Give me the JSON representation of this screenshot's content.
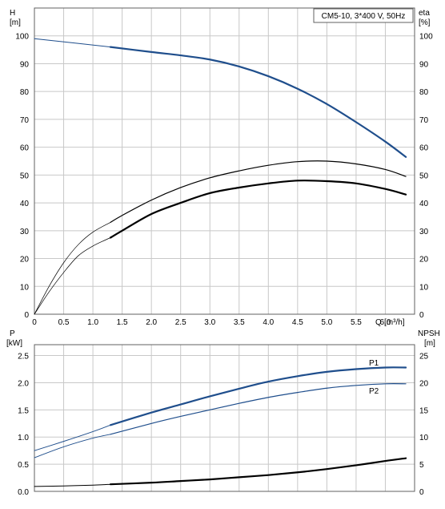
{
  "chart_data": [
    {
      "type": "line",
      "title": "CM5-10, 3*400 V, 50Hz",
      "y_left_label": "H",
      "y_left_unit": "[m]",
      "y_right_label": "eta",
      "y_right_unit": "[%]",
      "x_label": "Q",
      "x_unit": "[m³/h]",
      "xlim": [
        0,
        6.5
      ],
      "ylim": [
        0,
        110
      ],
      "x_ticks": [
        "0",
        "0.5",
        "1.0",
        "1.5",
        "2.0",
        "2.5",
        "3.0",
        "3.5",
        "4.0",
        "4.5",
        "5.0",
        "5.5",
        "6.0"
      ],
      "y_ticks": [
        "0",
        "10",
        "20",
        "30",
        "40",
        "50",
        "60",
        "70",
        "80",
        "90",
        "100"
      ],
      "grid": true,
      "series": [
        {
          "name": "H",
          "color": "#1f4e8c",
          "x": [
            0,
            1.3,
            2.0,
            2.5,
            3.0,
            3.5,
            4.0,
            4.5,
            5.0,
            5.5,
            6.0,
            6.35
          ],
          "y": [
            99,
            96,
            94.2,
            93,
            91.5,
            89,
            85.5,
            81,
            75.5,
            69,
            62,
            56.5
          ]
        },
        {
          "name": "eta thin",
          "color": "#000000",
          "x": [
            0,
            0.25,
            0.5,
            0.75,
            1.0,
            1.3,
            1.5,
            2.0,
            2.5,
            3.0,
            3.5,
            4.0,
            4.5,
            5.0,
            5.5,
            6.0,
            6.35
          ],
          "y": [
            0,
            10,
            18.5,
            25,
            29.5,
            33,
            35.5,
            41,
            45.5,
            49,
            51.5,
            53.5,
            54.8,
            55,
            54,
            52,
            49.5
          ]
        },
        {
          "name": "eta thick",
          "color": "#000000",
          "x": [
            0,
            0.25,
            0.5,
            0.75,
            1.0,
            1.3,
            1.5,
            2.0,
            2.5,
            3.0,
            3.5,
            4.0,
            4.5,
            5.0,
            5.5,
            6.0,
            6.35
          ],
          "y": [
            0,
            8,
            15,
            21,
            24.5,
            27.5,
            30,
            36,
            40,
            43.5,
            45.5,
            47,
            48,
            47.8,
            47,
            45,
            43
          ]
        }
      ]
    },
    {
      "type": "line",
      "y_left_label": "P",
      "y_left_unit": "[kW]",
      "y_right_label": "NPSH",
      "y_right_unit": "[m]",
      "xlim": [
        0,
        6.5
      ],
      "ylim_left": [
        0,
        2.7
      ],
      "ylim_right": [
        0,
        27
      ],
      "y_left_ticks": [
        "0.0",
        "0.5",
        "1.0",
        "1.5",
        "2.0",
        "2.5"
      ],
      "y_right_ticks": [
        "0",
        "5",
        "10",
        "15",
        "20",
        "25"
      ],
      "grid": true,
      "series": [
        {
          "name": "P1",
          "axis": "left",
          "color": "#1f4e8c",
          "x": [
            0,
            0.5,
            1.0,
            1.3,
            2.0,
            2.5,
            3.0,
            3.5,
            4.0,
            4.5,
            5.0,
            5.5,
            6.0,
            6.35
          ],
          "y": [
            0.75,
            0.92,
            1.1,
            1.22,
            1.45,
            1.6,
            1.75,
            1.89,
            2.02,
            2.12,
            2.2,
            2.25,
            2.28,
            2.28
          ]
        },
        {
          "name": "P2",
          "axis": "left",
          "color": "#1f4e8c",
          "x": [
            0,
            0.5,
            1.0,
            1.3,
            2.0,
            2.5,
            3.0,
            3.5,
            4.0,
            4.5,
            5.0,
            5.5,
            6.0,
            6.35
          ],
          "y": [
            0.62,
            0.82,
            0.98,
            1.05,
            1.25,
            1.38,
            1.5,
            1.62,
            1.73,
            1.82,
            1.9,
            1.95,
            1.98,
            1.98
          ]
        },
        {
          "name": "NPSH",
          "axis": "right",
          "color": "#000000",
          "x": [
            0,
            0.5,
            1.0,
            1.3,
            2.0,
            2.5,
            3.0,
            3.5,
            4.0,
            4.5,
            5.0,
            5.5,
            6.0,
            6.35
          ],
          "y": [
            0.9,
            1.0,
            1.15,
            1.3,
            1.6,
            1.9,
            2.2,
            2.6,
            3.0,
            3.5,
            4.1,
            4.8,
            5.6,
            6.1
          ]
        }
      ]
    }
  ]
}
